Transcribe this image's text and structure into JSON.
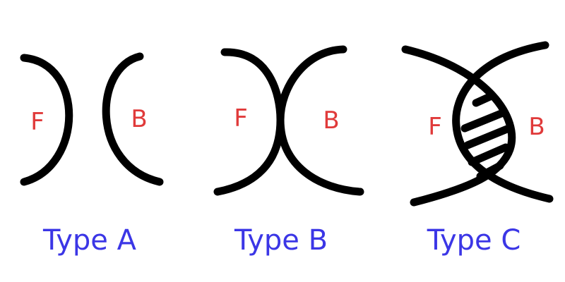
{
  "colors": {
    "stroke": "#000000",
    "side_label": "#e03a3a",
    "type_label": "#3b36e6"
  },
  "panels": [
    {
      "type_label": "Type A",
      "front_label": "F",
      "back_label": "B"
    },
    {
      "type_label": "Type B",
      "front_label": "F",
      "back_label": "B"
    },
    {
      "type_label": "Type C",
      "front_label": "F",
      "back_label": "B"
    }
  ]
}
